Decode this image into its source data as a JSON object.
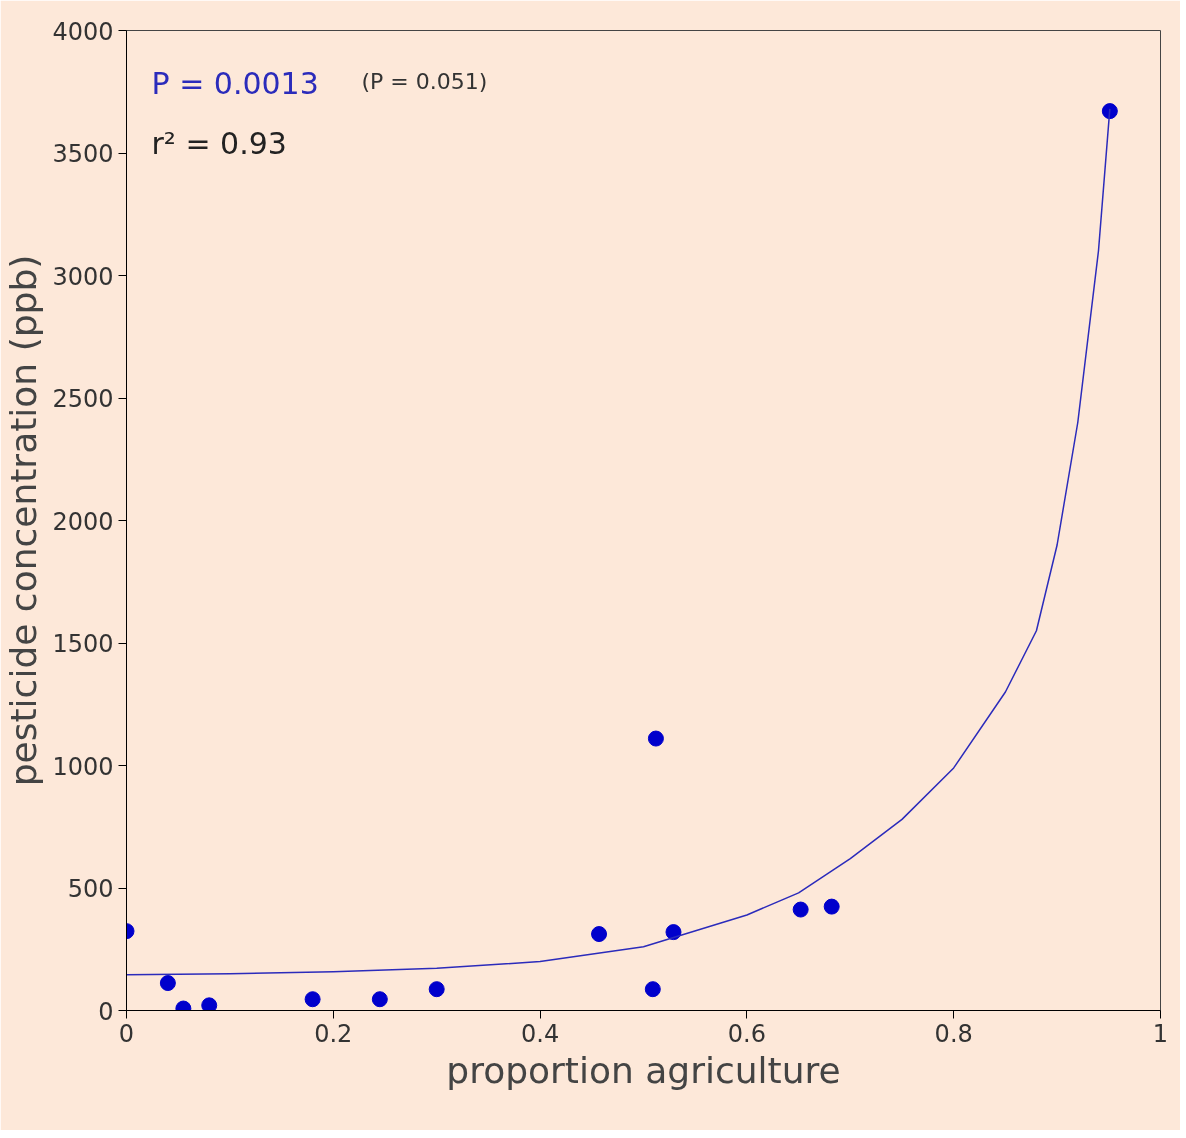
{
  "chart_data": {
    "type": "scatter",
    "xlabel": "proportion agriculture",
    "ylabel": "pesticide concentration (ppb)",
    "annotations": [
      "P = 0.0013",
      "(P = 0.051)",
      "r² = 0.93"
    ],
    "xlim": [
      0,
      1
    ],
    "ylim": [
      0,
      4000
    ],
    "xticks": [
      0,
      0.2,
      0.4,
      0.6,
      0.8,
      1
    ],
    "yticks": [
      0,
      500,
      1000,
      1500,
      2000,
      2500,
      3000,
      3500,
      4000
    ],
    "grid": false,
    "series": [
      {
        "marker": "circle",
        "color": "#0000cc",
        "x": [
          0,
          0.04,
          0.055,
          0.08,
          0.18,
          0.245,
          0.3,
          0.457,
          0.512,
          0.509,
          0.529,
          0.652,
          0.682,
          0.951
        ],
        "values": [
          324,
          112,
          8,
          21,
          46,
          46,
          87,
          312,
          1110,
          87,
          320,
          412,
          424,
          3671
        ]
      },
      {
        "type": "line",
        "color": "#2b2bbb",
        "x": [
          0,
          0.1,
          0.2,
          0.3,
          0.4,
          0.5,
          0.6,
          0.65,
          0.7,
          0.75,
          0.8,
          0.85,
          0.88,
          0.9,
          0.92,
          0.94,
          0.951
        ],
        "values": [
          146,
          150,
          158,
          172,
          200,
          260,
          390,
          480,
          620,
          780,
          990,
          1300,
          1550,
          1900,
          2400,
          3100,
          3680
        ]
      }
    ]
  }
}
